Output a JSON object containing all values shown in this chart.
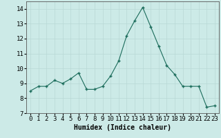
{
  "x": [
    0,
    1,
    2,
    3,
    4,
    5,
    6,
    7,
    8,
    9,
    10,
    11,
    12,
    13,
    14,
    15,
    16,
    17,
    18,
    19,
    20,
    21,
    22,
    23
  ],
  "y": [
    8.5,
    8.8,
    8.8,
    9.2,
    9.0,
    9.3,
    9.7,
    8.6,
    8.6,
    8.8,
    9.5,
    10.5,
    12.2,
    13.2,
    14.1,
    12.8,
    11.5,
    10.2,
    9.6,
    8.8,
    8.8,
    8.8,
    7.4,
    7.5
  ],
  "line_color": "#1a6b5a",
  "marker": "+",
  "marker_size": 3,
  "bg_color": "#cceae7",
  "grid_color": "#b8d8d5",
  "xlabel": "Humidex (Indice chaleur)",
  "xlim": [
    -0.5,
    23.5
  ],
  "ylim": [
    7,
    14.5
  ],
  "yticks": [
    7,
    8,
    9,
    10,
    11,
    12,
    13,
    14
  ],
  "xticks": [
    0,
    1,
    2,
    3,
    4,
    5,
    6,
    7,
    8,
    9,
    10,
    11,
    12,
    13,
    14,
    15,
    16,
    17,
    18,
    19,
    20,
    21,
    22,
    23
  ],
  "xlabel_fontsize": 7,
  "tick_fontsize": 6.5
}
